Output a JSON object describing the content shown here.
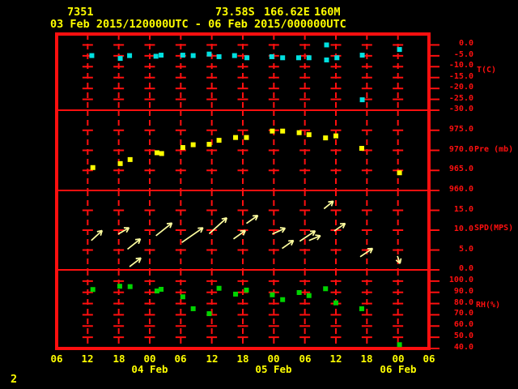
{
  "header": {
    "station_id": "7351",
    "latitude": "73.58S",
    "longitude": "166.62E",
    "elevation": "160M",
    "time_range": "03 Feb 2015/120000UTC - 06 Feb 2015/000000UTC"
  },
  "page_number": "2",
  "colors": {
    "background": "#000000",
    "grid_red": "#ff0f0f",
    "header_yellow": "#ffff00",
    "temperature_marker": "#00e0e0",
    "pressure_marker": "#ffff00",
    "wind_arrow": "#ffffa0",
    "humidity_marker": "#00d400"
  },
  "time_axis": {
    "hours": [
      0,
      6,
      12,
      18,
      24,
      30,
      36,
      42,
      48,
      54,
      60,
      66,
      72
    ],
    "hour_labels": [
      "06",
      "12",
      "18",
      "00",
      "06",
      "12",
      "18",
      "00",
      "06",
      "12",
      "18",
      "00",
      "06"
    ],
    "date_labels": [
      {
        "label": "04 Feb",
        "hour": 18
      },
      {
        "label": "05 Feb",
        "hour": 42
      },
      {
        "label": "06 Feb",
        "hour": 66
      }
    ]
  },
  "chart_data": {
    "type": "scatter",
    "title": "Station meteogram 7351, 03 Feb 2015/120000UTC - 06 Feb 2015/000000UTC",
    "xlabel_dates": [
      "04 Feb",
      "05 Feb",
      "06 Feb"
    ],
    "x_range_hours": [
      0,
      72
    ],
    "grid": "dashed-red-crosses",
    "panels": [
      {
        "name": "temperature",
        "type": "scatter",
        "ylabel": "T(C)",
        "marker_color": "#00e0e0",
        "tick_values": [
          0,
          -5,
          -10,
          -15,
          -20,
          -25,
          -30
        ],
        "tick_labels": [
          "0.0",
          "-5.0",
          "-10.0",
          "-15.0",
          "-20.0",
          "-25.0",
          "-30.0"
        ],
        "points": [
          [
            6.8,
            -4.9
          ],
          [
            12.3,
            -6.2
          ],
          [
            14.1,
            -4.9
          ],
          [
            19.2,
            -5.2
          ],
          [
            20.2,
            -4.7
          ],
          [
            24.4,
            -4.7
          ],
          [
            26.4,
            -4.9
          ],
          [
            29.5,
            -4.2
          ],
          [
            31.4,
            -5.4
          ],
          [
            34.4,
            -4.9
          ],
          [
            36.8,
            -5.9
          ],
          [
            41.6,
            -5.4
          ],
          [
            43.7,
            -5.9
          ],
          [
            46.8,
            -5.9
          ],
          [
            48.8,
            -5.9
          ],
          [
            52.2,
            0.0
          ],
          [
            52.2,
            -6.9
          ],
          [
            54.2,
            -5.9
          ],
          [
            59.1,
            -4.7
          ],
          [
            59.1,
            -25.2
          ],
          [
            66.3,
            -2.1
          ]
        ]
      },
      {
        "name": "pressure",
        "type": "scatter",
        "ylabel": "Pre (mb)",
        "marker_color": "#ffff00",
        "tick_values": [
          975,
          970,
          965,
          960
        ],
        "tick_labels": [
          "975.0",
          "970.0",
          "965.0",
          "960.0"
        ],
        "points": [
          [
            7.0,
            965.7
          ],
          [
            12.3,
            966.7
          ],
          [
            14.2,
            967.7
          ],
          [
            19.4,
            969.4
          ],
          [
            20.3,
            969.2
          ],
          [
            24.4,
            970.7
          ],
          [
            26.4,
            971.4
          ],
          [
            29.5,
            971.5
          ],
          [
            31.4,
            972.5
          ],
          [
            34.6,
            973.2
          ],
          [
            36.7,
            973.2
          ],
          [
            41.7,
            974.8
          ],
          [
            43.7,
            974.8
          ],
          [
            46.9,
            974.4
          ],
          [
            48.8,
            973.9
          ],
          [
            52.0,
            973.1
          ],
          [
            54.0,
            973.6
          ],
          [
            59.0,
            970.5
          ],
          [
            66.3,
            964.4
          ]
        ]
      },
      {
        "name": "wind-speed",
        "type": "vector",
        "ylabel": "SPD(MPS)",
        "arrow_color": "#ffffa0",
        "tick_values": [
          15,
          10,
          5,
          0
        ],
        "tick_labels": [
          "15.0",
          "10.0",
          "5.0",
          "0.0"
        ],
        "arrows": [
          [
            6.7,
            7.4,
            8.8,
            9.9
          ],
          [
            11.9,
            9.0,
            14.0,
            10.6
          ],
          [
            13.7,
            5.2,
            16.2,
            7.8
          ],
          [
            14.1,
            0.8,
            16.3,
            3.0
          ],
          [
            19.2,
            8.6,
            22.3,
            11.8
          ],
          [
            24.2,
            6.9,
            28.3,
            10.6
          ],
          [
            29.5,
            9.1,
            32.9,
            13.1
          ],
          [
            34.2,
            7.8,
            36.5,
            9.9
          ],
          [
            36.7,
            11.7,
            38.9,
            13.7
          ],
          [
            41.7,
            9.0,
            44.2,
            10.5
          ],
          [
            43.6,
            5.4,
            45.8,
            7.4
          ],
          [
            47.0,
            7.2,
            50.0,
            9.8
          ],
          [
            48.8,
            7.4,
            51.0,
            8.6
          ],
          [
            51.7,
            15.4,
            53.5,
            17.3
          ],
          [
            53.7,
            9.8,
            55.8,
            11.7
          ],
          [
            58.7,
            3.3,
            61.1,
            5.4
          ],
          [
            65.9,
            3.5,
            66.4,
            1.6
          ]
        ]
      },
      {
        "name": "relative-humidity",
        "type": "scatter",
        "ylabel": "RH(%)",
        "marker_color": "#00d400",
        "tick_values": [
          100,
          90,
          80,
          70,
          60,
          50,
          40
        ],
        "tick_labels": [
          "100.0",
          "90.0",
          "80.0",
          "70.0",
          "60.0",
          "50.0",
          "40.0"
        ],
        "points": [
          [
            7.0,
            92.5
          ],
          [
            12.2,
            95.4
          ],
          [
            14.2,
            95.1
          ],
          [
            19.4,
            91.2
          ],
          [
            20.2,
            92.7
          ],
          [
            24.4,
            86.0
          ],
          [
            26.4,
            75.4
          ],
          [
            29.5,
            71.0
          ],
          [
            31.4,
            93.6
          ],
          [
            34.6,
            88.4
          ],
          [
            36.7,
            92.0
          ],
          [
            41.7,
            87.8
          ],
          [
            43.7,
            83.5
          ],
          [
            46.9,
            89.8
          ],
          [
            48.8,
            87.1
          ],
          [
            52.0,
            93.2
          ],
          [
            54.0,
            80.6
          ],
          [
            59.0,
            75.4
          ],
          [
            66.3,
            43.4
          ]
        ]
      }
    ]
  }
}
